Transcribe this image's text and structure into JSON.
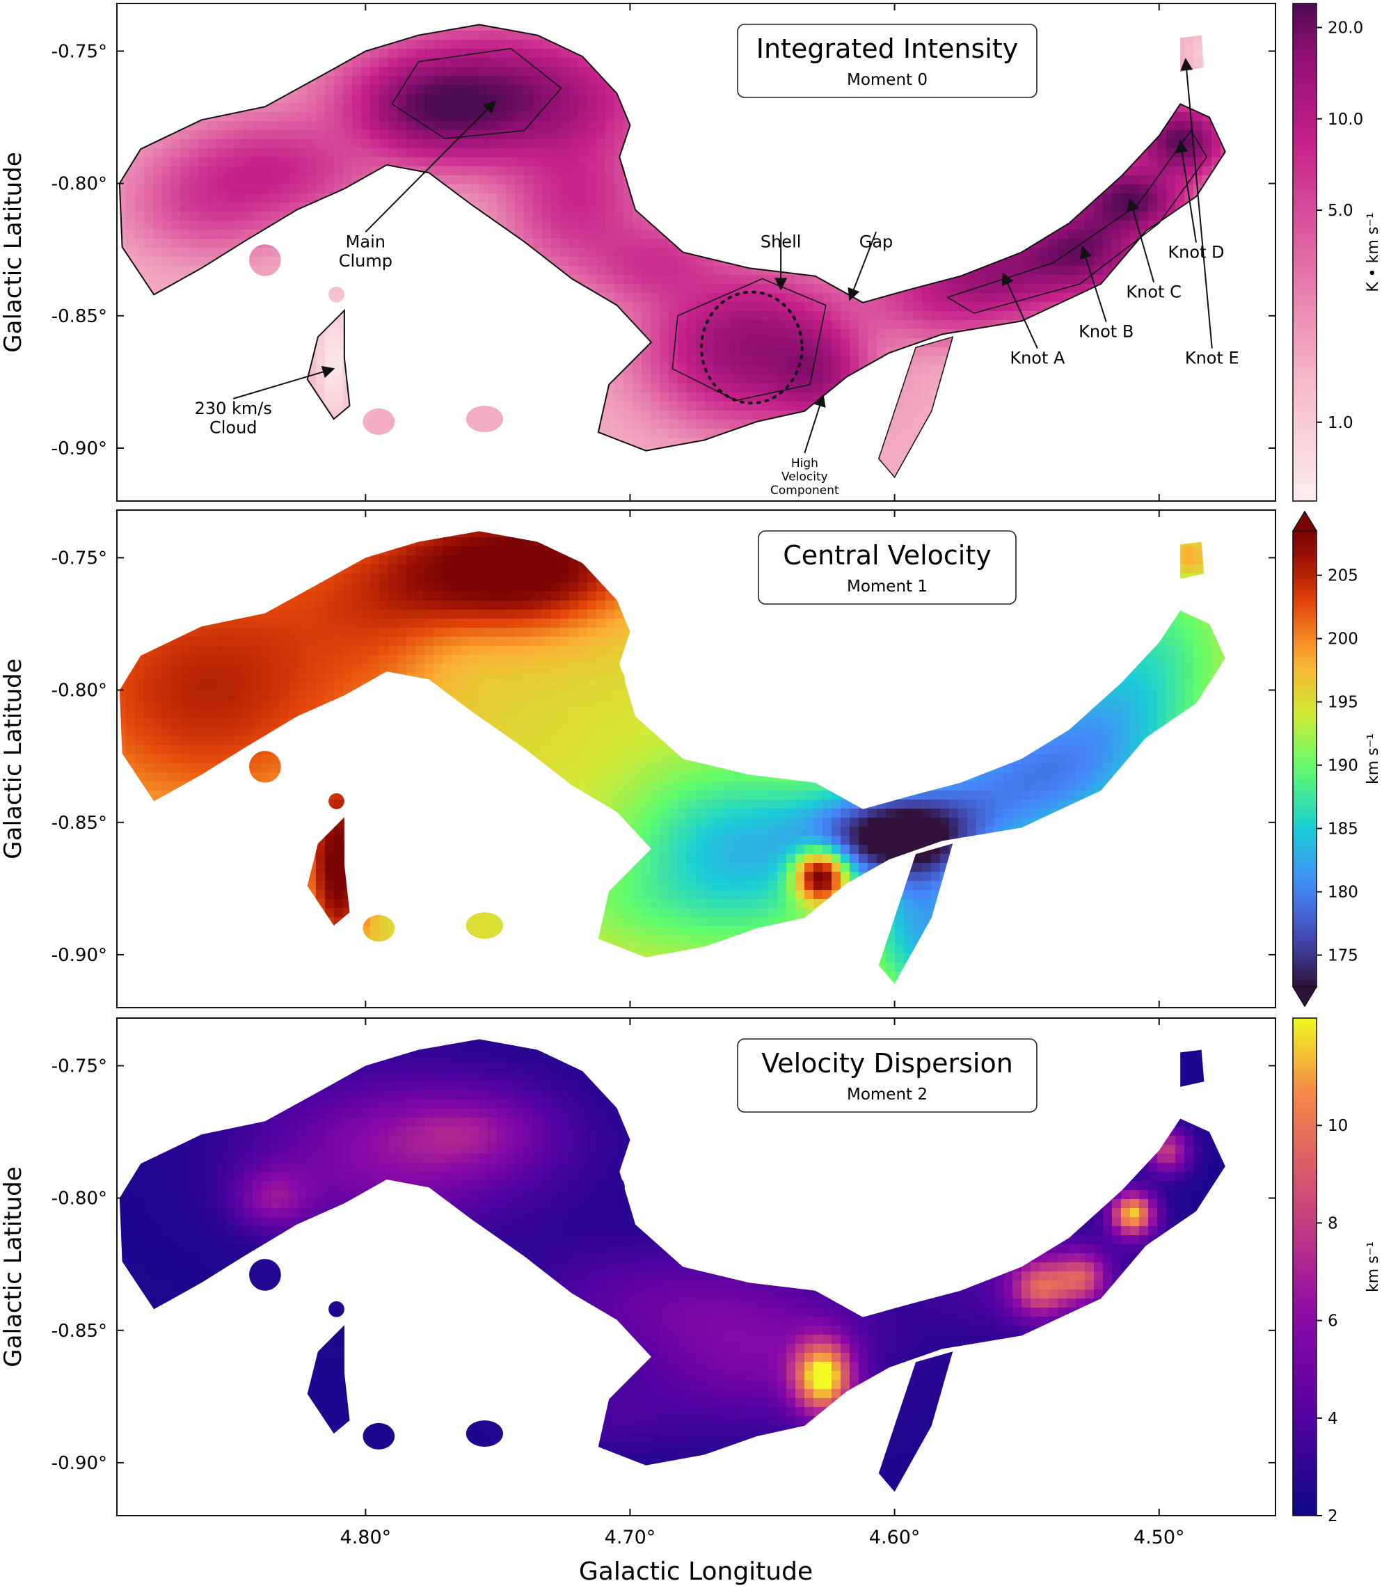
{
  "figure": {
    "x_axis_label": "Galactic Longitude",
    "panels": [
      {
        "id": "moment0",
        "title": "Integrated Intensity",
        "subtitle": "Moment 0",
        "ylabel": "Galactic Latitude",
        "colormap": "pink-purple",
        "colorbar": {
          "label": "K • km s⁻¹",
          "scale": "log",
          "range": [
            0.55,
            24
          ],
          "ticks": [
            1.0,
            5.0,
            10.0,
            20.0
          ],
          "tick_labels": [
            "1.0",
            "5.0",
            "10.0",
            "20.0"
          ],
          "extend": "none"
        },
        "annotations": [
          {
            "text": "Main\nClump",
            "target_l": 4.751,
            "target_b": -0.769,
            "label_l": 4.8,
            "label_b": -0.822
          },
          {
            "text": "230 km/s\nCloud",
            "target_l": 4.812,
            "target_b": -0.87,
            "label_l": 4.85,
            "label_b": -0.885
          },
          {
            "text": "Shell",
            "target_l": 4.643,
            "target_b": -0.84,
            "label_l": 4.643,
            "label_b": -0.822
          },
          {
            "text": "Gap",
            "target_l": 4.617,
            "target_b": -0.844,
            "label_l": 4.607,
            "label_b": -0.822
          },
          {
            "text": "High\nVelocity\nComponent",
            "target_l": 4.627,
            "target_b": -0.88,
            "label_l": 4.634,
            "label_b": -0.905
          },
          {
            "text": "Knot A",
            "target_l": 4.559,
            "target_b": -0.834,
            "label_l": 4.546,
            "label_b": -0.866
          },
          {
            "text": "Knot B",
            "target_l": 4.529,
            "target_b": -0.824,
            "label_l": 4.52,
            "label_b": -0.856
          },
          {
            "text": "Knot C",
            "target_l": 4.511,
            "target_b": -0.806,
            "label_l": 4.502,
            "label_b": -0.841
          },
          {
            "text": "Knot D",
            "target_l": 4.492,
            "target_b": -0.784,
            "label_l": 4.486,
            "label_b": -0.826
          },
          {
            "text": "Knot E",
            "target_l": 4.49,
            "target_b": -0.753,
            "label_l": 4.48,
            "label_b": -0.866
          }
        ]
      },
      {
        "id": "moment1",
        "title": "Central Velocity",
        "subtitle": "Moment 1",
        "ylabel": "Galactic Latitude",
        "colormap": "turbo",
        "colorbar": {
          "label": "km s⁻¹",
          "scale": "linear",
          "range": [
            172.5,
            208.5
          ],
          "ticks": [
            175,
            180,
            185,
            190,
            195,
            200,
            205
          ],
          "tick_labels": [
            "175",
            "180",
            "185",
            "190",
            "195",
            "200",
            "205"
          ],
          "extend": "both"
        }
      },
      {
        "id": "moment2",
        "title": "Velocity Dispersion",
        "subtitle": "Moment 2",
        "ylabel": "Galactic Latitude",
        "colormap": "plasma",
        "colorbar": {
          "label": "km s⁻¹",
          "scale": "linear",
          "range": [
            2,
            12.2
          ],
          "ticks": [
            2,
            4,
            6,
            8,
            10
          ],
          "tick_labels": [
            "2",
            "4",
            "6",
            "8",
            "10"
          ],
          "extend": "none"
        }
      }
    ],
    "x_ticks": [
      4.8,
      4.7,
      4.6,
      4.5
    ],
    "x_tick_labels": [
      "4.80°",
      "4.70°",
      "4.60°",
      "4.50°"
    ],
    "y_ticks": [
      -0.75,
      -0.8,
      -0.85,
      -0.9
    ],
    "y_tick_labels": [
      "-0.75°",
      "-0.80°",
      "-0.85°",
      "-0.90°"
    ]
  },
  "chart_data": [
    {
      "type": "heatmap",
      "title": "Integrated Intensity",
      "subtitle": "Moment 0",
      "xlabel": "Galactic Longitude",
      "ylabel": "Galactic Latitude",
      "xlim": [
        4.894,
        4.456
      ],
      "ylim": [
        -0.92,
        -0.732
      ],
      "units": "K • km s⁻¹",
      "color_scale": "log",
      "grid": false,
      "features": [
        {
          "name": "Main Clump",
          "l": 4.751,
          "b": -0.769,
          "intensity": 15
        },
        {
          "name": "Shell",
          "l": 4.654,
          "b": -0.863,
          "intensity": 10
        },
        {
          "name": "Gap",
          "l": 4.617,
          "b": -0.844
        },
        {
          "name": "High Velocity Component",
          "l": 4.627,
          "b": -0.88
        },
        {
          "name": "230 km/s Cloud",
          "l": 4.812,
          "b": -0.87,
          "intensity": 0.8
        },
        {
          "name": "Knot A",
          "l": 4.559,
          "b": -0.834,
          "intensity": 12
        },
        {
          "name": "Knot B",
          "l": 4.529,
          "b": -0.824,
          "intensity": 16
        },
        {
          "name": "Knot C",
          "l": 4.511,
          "b": -0.806,
          "intensity": 20
        },
        {
          "name": "Knot D",
          "l": 4.492,
          "b": -0.784,
          "intensity": 20
        },
        {
          "name": "Knot E",
          "l": 4.49,
          "b": -0.753,
          "intensity": 1.0
        }
      ]
    },
    {
      "type": "heatmap",
      "title": "Central Velocity",
      "subtitle": "Moment 1",
      "xlabel": "Galactic Longitude",
      "ylabel": "Galactic Latitude",
      "xlim": [
        4.894,
        4.456
      ],
      "ylim": [
        -0.92,
        -0.732
      ],
      "units": "km s⁻¹",
      "color_scale": "linear",
      "grid": false,
      "regions": [
        {
          "name": "western arm",
          "l_range": [
            4.89,
            4.72
          ],
          "velocity": 204
        },
        {
          "name": "main clump ridge",
          "l_range": [
            4.8,
            4.7
          ],
          "velocity": 198
        },
        {
          "name": "shell",
          "l_range": [
            4.68,
            4.62
          ],
          "velocity": 184
        },
        {
          "name": "high velocity component",
          "l": 4.627,
          "b": -0.87,
          "velocity": 208
        },
        {
          "name": "gap",
          "l_range": [
            4.62,
            4.58
          ],
          "velocity": 175
        },
        {
          "name": "eastern arm",
          "l_range": [
            4.57,
            4.47
          ],
          "velocity": 184
        },
        {
          "name": "knot E",
          "l": 4.489,
          "b": -0.751,
          "velocity": 200
        },
        {
          "name": "230 km/s cloud",
          "l": 4.812,
          "b": -0.87,
          "velocity": 209
        }
      ]
    },
    {
      "type": "heatmap",
      "title": "Velocity Dispersion",
      "subtitle": "Moment 2",
      "xlabel": "Galactic Longitude",
      "ylabel": "Galactic Latitude",
      "xlim": [
        4.894,
        4.456
      ],
      "ylim": [
        -0.92,
        -0.732
      ],
      "units": "km s⁻¹",
      "color_scale": "linear",
      "grid": false,
      "regions": [
        {
          "name": "diffuse gas",
          "dispersion": 2.5
        },
        {
          "name": "main clump ridge",
          "l_range": [
            4.8,
            4.74
          ],
          "dispersion": 6
        },
        {
          "name": "shell",
          "l_range": [
            4.68,
            4.62
          ],
          "dispersion": 6
        },
        {
          "name": "high velocity component",
          "l": 4.627,
          "b": -0.868,
          "dispersion": 11.5
        },
        {
          "name": "knot A",
          "l": 4.545,
          "b": -0.834,
          "dispersion": 8
        },
        {
          "name": "knot B",
          "l": 4.529,
          "b": -0.83,
          "dispersion": 7.5
        },
        {
          "name": "knot C",
          "l": 4.51,
          "b": -0.806,
          "dispersion": 11.5
        },
        {
          "name": "knot D",
          "l": 4.497,
          "b": -0.782,
          "dispersion": 8
        }
      ]
    }
  ]
}
